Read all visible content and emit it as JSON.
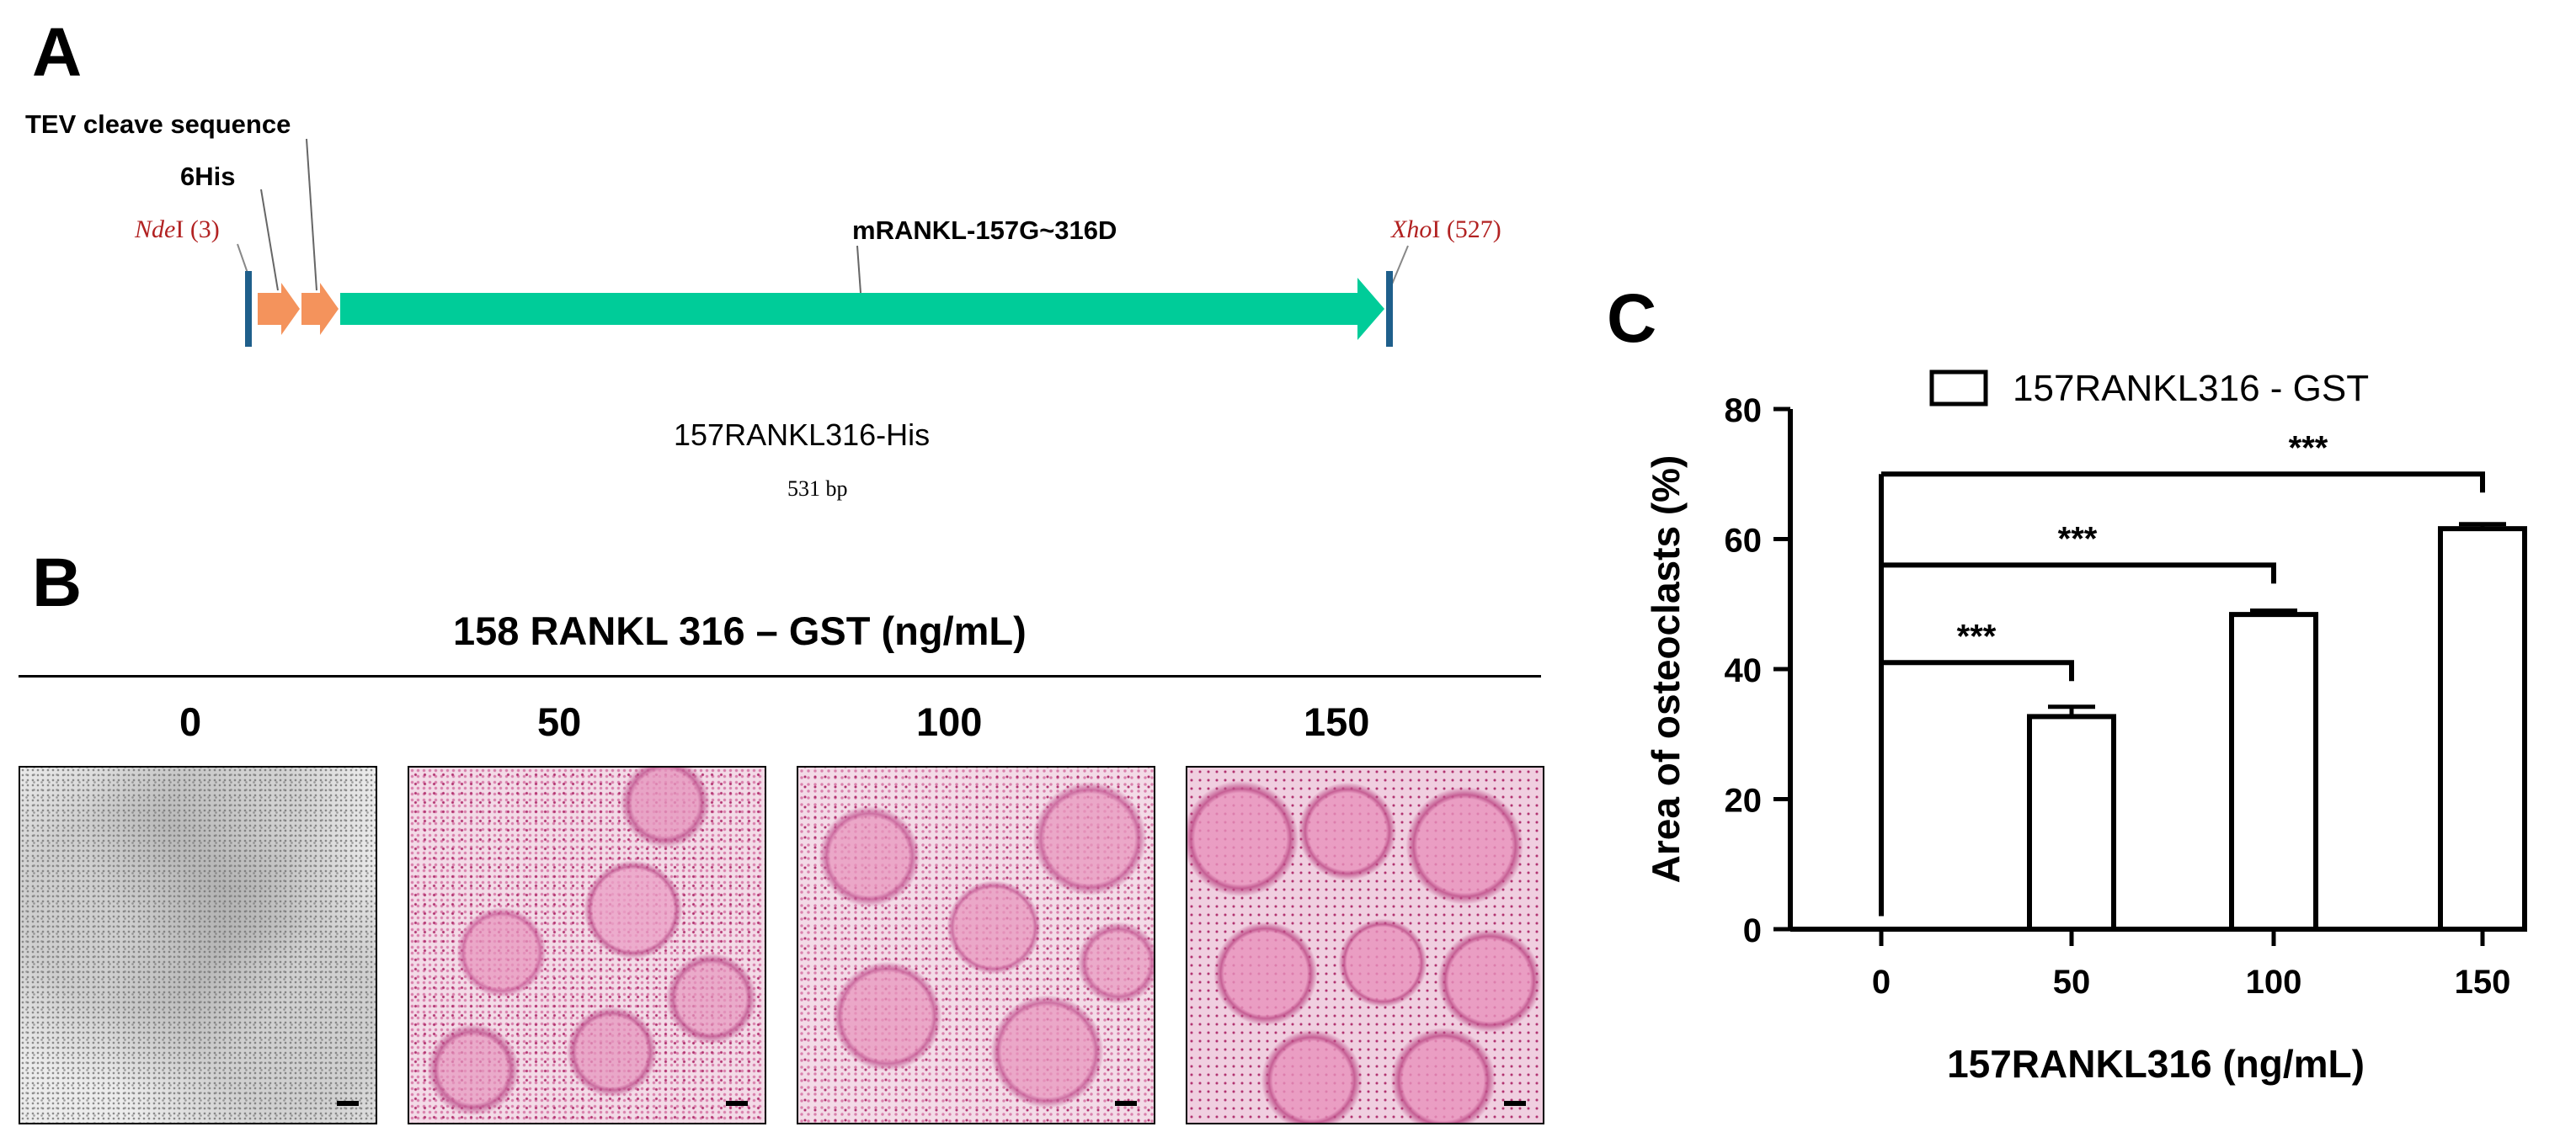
{
  "panel_a": {
    "label": "A",
    "tev_label": "TEV cleave sequence",
    "his_label": "6His",
    "gene_label": "mRANKL-157G~316D",
    "nde_site": "I (3)",
    "nde_enzyme": "Nde",
    "xho_site": "I (527)",
    "xho_enzyme": "Xho",
    "construct_name": "157RANKL316-His",
    "construct_size": "531 bp",
    "colors": {
      "gene_arrow": "#00cc99",
      "tag_arrow": "#f4935c",
      "site_marker": "#1f5f8b",
      "enzyme_text": "#b22222"
    }
  },
  "panel_b": {
    "label": "B",
    "title": "158 RANKL 316 – GST (ng/mL)",
    "doses": [
      "0",
      "50",
      "100",
      "150"
    ],
    "micrographs": [
      "gray-field",
      "pink-stained",
      "pink-stained",
      "pink-stained"
    ],
    "colors": {
      "stain": "#e08bb5",
      "stain_dark": "#b0306e",
      "unstained": "#b8b8b8"
    }
  },
  "panel_c": {
    "label": "C",
    "chart_data": {
      "type": "bar",
      "categories": [
        "0",
        "50",
        "100",
        "150"
      ],
      "series": [
        {
          "name": "157RANKL316 - GST",
          "values": [
            0,
            32.7,
            48.4,
            61.6
          ],
          "errors": [
            0,
            1.5,
            0.6,
            0.7
          ]
        }
      ],
      "xlabel": "157RANKL316 (ng/mL)",
      "ylabel": "Area of osteoclasts (%)",
      "ylim": [
        0,
        80
      ],
      "yticks": [
        "0",
        "20",
        "40",
        "60",
        "80"
      ],
      "legend_position": "top",
      "grid": false,
      "significance": [
        {
          "from": "0",
          "to": "50",
          "label": "***",
          "level": 41
        },
        {
          "from": "0",
          "to": "100",
          "label": "***",
          "level": 56
        },
        {
          "from": "0",
          "to": "150",
          "label": "***",
          "level": 70
        }
      ]
    }
  }
}
